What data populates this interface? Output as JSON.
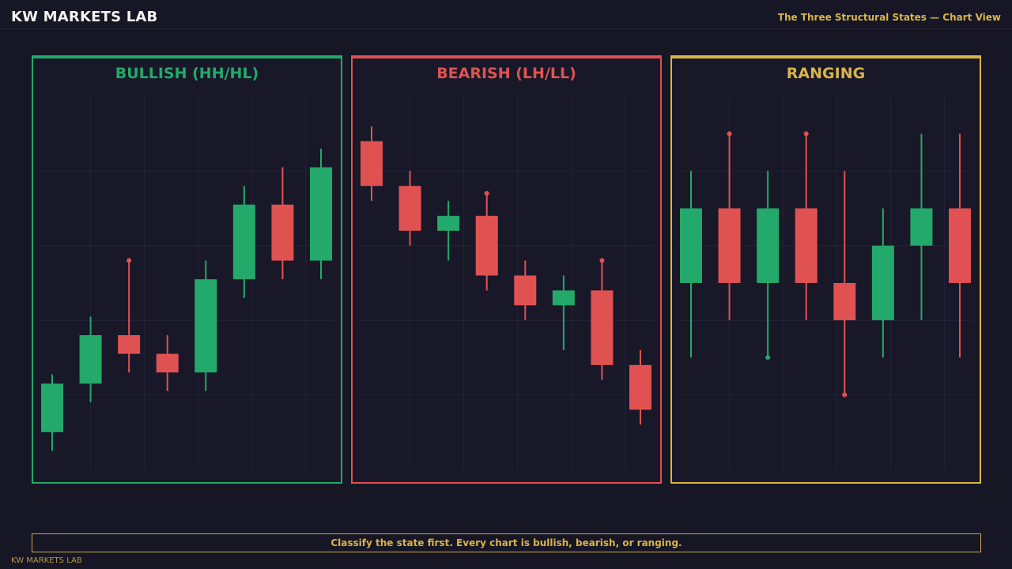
{
  "header": {
    "brand": "KW MARKETS LAB",
    "subtitle": "The Three Structural States — Chart View"
  },
  "footer": {
    "message": "Classify the state first. Every chart is bullish, bearish, or ranging.",
    "brand": "KW MARKETS LAB"
  },
  "colors": {
    "bull": "#23a96a",
    "bear": "#e05252",
    "range": "#d9b44a",
    "grid": "#23233a",
    "panel_bg": "#181828"
  },
  "chart_data": [
    {
      "type": "candlestick",
      "title": "BULLISH (HH/HL)",
      "accent": "bull",
      "grid": true,
      "ylim": [
        0,
        100
      ],
      "candles": [
        {
          "open": 10,
          "close": 23,
          "high": 25.5,
          "low": 5,
          "dir": "up"
        },
        {
          "open": 23,
          "close": 36,
          "high": 41,
          "low": 18,
          "dir": "up"
        },
        {
          "open": 36,
          "close": 31,
          "high": 56,
          "low": 26,
          "dir": "down",
          "marker": "high"
        },
        {
          "open": 31,
          "close": 26,
          "high": 36,
          "low": 21,
          "dir": "down"
        },
        {
          "open": 26,
          "close": 51,
          "high": 56,
          "low": 21,
          "dir": "up"
        },
        {
          "open": 51,
          "close": 71,
          "high": 76,
          "low": 46,
          "dir": "up"
        },
        {
          "open": 71,
          "close": 56,
          "high": 81,
          "low": 51,
          "dir": "down"
        },
        {
          "open": 56,
          "close": 81,
          "high": 86,
          "low": 51,
          "dir": "up"
        }
      ]
    },
    {
      "type": "candlestick",
      "title": "BEARISH (LH/LL)",
      "accent": "bear",
      "grid": true,
      "ylim": [
        0,
        100
      ],
      "candles": [
        {
          "open": 88,
          "close": 76,
          "high": 92,
          "low": 72,
          "dir": "down"
        },
        {
          "open": 76,
          "close": 64,
          "high": 80,
          "low": 60,
          "dir": "down"
        },
        {
          "open": 64,
          "close": 68,
          "high": 72,
          "low": 56,
          "dir": "up"
        },
        {
          "open": 68,
          "close": 52,
          "high": 74,
          "low": 48,
          "dir": "down",
          "marker": "high"
        },
        {
          "open": 52,
          "close": 44,
          "high": 56,
          "low": 40,
          "dir": "down"
        },
        {
          "open": 44,
          "close": 48,
          "high": 52,
          "low": 32,
          "dir": "up"
        },
        {
          "open": 48,
          "close": 28,
          "high": 56,
          "low": 24,
          "dir": "down",
          "marker": "high"
        },
        {
          "open": 28,
          "close": 16,
          "high": 32,
          "low": 12,
          "dir": "down"
        }
      ]
    },
    {
      "type": "candlestick",
      "title": "RANGING",
      "accent": "range",
      "grid": true,
      "ylim": [
        0,
        100
      ],
      "candles": [
        {
          "open": 50,
          "close": 70,
          "high": 80,
          "low": 30,
          "dir": "up"
        },
        {
          "open": 70,
          "close": 50,
          "high": 90,
          "low": 40,
          "dir": "down",
          "marker": "high"
        },
        {
          "open": 50,
          "close": 70,
          "high": 80,
          "low": 30,
          "dir": "up",
          "marker": "low"
        },
        {
          "open": 70,
          "close": 50,
          "high": 90,
          "low": 40,
          "dir": "down",
          "marker": "high"
        },
        {
          "open": 50,
          "close": 40,
          "high": 80,
          "low": 20,
          "dir": "down",
          "marker": "low"
        },
        {
          "open": 40,
          "close": 60,
          "high": 70,
          "low": 30,
          "dir": "up"
        },
        {
          "open": 60,
          "close": 70,
          "high": 90,
          "low": 40,
          "dir": "up"
        },
        {
          "open": 70,
          "close": 50,
          "high": 90,
          "low": 30,
          "dir": "down"
        }
      ]
    }
  ]
}
